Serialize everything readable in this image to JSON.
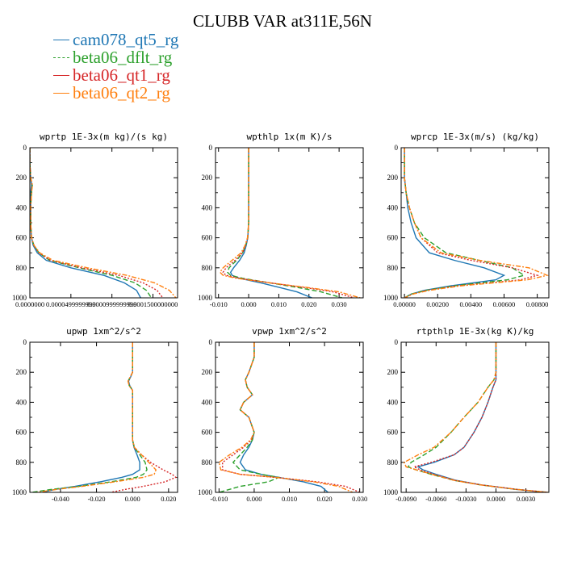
{
  "figure_title": "CLUBB VAR at311E,56N",
  "legend": [
    {
      "label": "cam078_qt5_rg",
      "color": "#1f77b4",
      "dash": "solid"
    },
    {
      "label": "beta06_dflt_rg",
      "color": "#2ca02c",
      "dash": "dash"
    },
    {
      "label": "beta06_qt1_rg",
      "color": "#d62728",
      "dash": "dot"
    },
    {
      "label": "beta06_qt2_rg",
      "color": "#ff7f0e",
      "dash": "dashdot"
    }
  ],
  "chart_data": [
    {
      "type": "line",
      "title": "wprtp  1E-3x(m kg)/(s kg)",
      "xlim": [
        0.0,
        0.00018
      ],
      "ylim": [
        0,
        1000
      ],
      "y_inverted": true,
      "yticks": [
        0,
        200,
        400,
        600,
        800,
        1000
      ],
      "xticks": [
        0.0,
        5e-05,
        0.0001,
        0.00015
      ],
      "xticklabels": [
        "0.0000000",
        "0.0000499999999",
        "0.0000999999999",
        "0.0001500000000"
      ],
      "y": [
        0,
        100,
        200,
        250,
        300,
        400,
        500,
        600,
        650,
        700,
        750,
        800,
        850,
        900,
        950,
        1000
      ],
      "series": [
        {
          "name": "cam078_qt5_rg",
          "x": [
            0.0,
            0.0,
            1e-06,
            2e-06,
            1e-06,
            1e-06,
            1e-06,
            2e-06,
            4e-06,
            9e-06,
            2e-05,
            5e-05,
            9e-05,
            0.000115,
            0.00013,
            0.000135
          ]
        },
        {
          "name": "beta06_dflt_rg",
          "x": [
            0.0,
            0.0,
            1e-06,
            3e-06,
            2e-06,
            1e-06,
            1e-06,
            2e-06,
            5e-06,
            1.1e-05,
            2.4e-05,
            6e-05,
            0.0001,
            0.000128,
            0.000142,
            0.000148
          ]
        },
        {
          "name": "beta06_qt1_rg",
          "x": [
            0.0,
            0.0,
            1e-06,
            3e-06,
            2e-06,
            1e-06,
            1e-06,
            2e-06,
            5e-06,
            1.1e-05,
            2.5e-05,
            6.3e-05,
            0.000108,
            0.000138,
            0.000155,
            0.000162
          ]
        },
        {
          "name": "beta06_qt2_rg",
          "x": [
            0.0,
            0.0,
            1e-06,
            3e-06,
            2e-06,
            1e-06,
            1e-06,
            2e-06,
            5e-06,
            1.2e-05,
            2.8e-05,
            7e-05,
            0.000118,
            0.000152,
            0.00017,
            0.000178
          ]
        }
      ]
    },
    {
      "type": "line",
      "title": "wpthlp  1x(m K)/s",
      "xlim": [
        -0.011,
        0.038
      ],
      "ylim": [
        0,
        1000
      ],
      "y_inverted": true,
      "yticks": [
        0,
        200,
        400,
        600,
        800,
        1000
      ],
      "xticks": [
        -0.01,
        0.0,
        0.01,
        0.02,
        0.03
      ],
      "xticklabels": [
        "-0.010",
        "0.000",
        "0.010",
        "0.020",
        "0.030"
      ],
      "y": [
        0,
        100,
        200,
        300,
        400,
        500,
        600,
        650,
        700,
        750,
        800,
        830,
        850,
        870,
        900,
        930,
        960,
        1000
      ],
      "series": [
        {
          "name": "cam078_qt5_rg",
          "x": [
            0.0,
            0.0,
            0.0,
            0.0,
            0.0,
            0.0,
            -0.0003,
            -0.0008,
            -0.0015,
            -0.003,
            -0.005,
            -0.006,
            -0.0055,
            -0.003,
            0.004,
            0.01,
            0.016,
            0.021
          ]
        },
        {
          "name": "beta06_dflt_rg",
          "x": [
            0.0,
            0.0,
            0.0,
            0.0,
            0.0,
            0.0,
            -0.0003,
            -0.001,
            -0.002,
            -0.004,
            -0.0065,
            -0.007,
            -0.006,
            -0.002,
            0.007,
            0.016,
            0.024,
            0.031
          ]
        },
        {
          "name": "beta06_qt1_rg",
          "x": [
            0.0,
            0.0,
            0.0,
            0.0,
            0.0,
            0.0,
            -0.0003,
            -0.001,
            -0.002,
            -0.0045,
            -0.0075,
            -0.0085,
            -0.0075,
            -0.003,
            0.007,
            0.018,
            0.028,
            0.035
          ]
        },
        {
          "name": "beta06_qt2_rg",
          "x": [
            0.0,
            0.0,
            0.0,
            0.0,
            0.0,
            0.0,
            -0.0004,
            -0.0012,
            -0.0025,
            -0.0055,
            -0.0085,
            -0.0095,
            -0.0085,
            -0.004,
            0.007,
            0.019,
            0.03,
            0.037
          ]
        }
      ]
    },
    {
      "type": "line",
      "title": "wprcp  1E-3x(m/s) (kg/kg)",
      "xlim": [
        -0.0002,
        0.0087
      ],
      "ylim": [
        0,
        1000
      ],
      "y_inverted": true,
      "yticks": [
        0,
        200,
        400,
        600,
        800,
        1000
      ],
      "xticks": [
        0.0,
        0.002,
        0.004,
        0.006,
        0.008
      ],
      "xticklabels": [
        "0.00000",
        "0.00200",
        "0.00400",
        "0.00600",
        "0.00800"
      ],
      "y": [
        0,
        100,
        200,
        300,
        400,
        500,
        600,
        700,
        750,
        800,
        850,
        880,
        920,
        950,
        975,
        1000
      ],
      "series": [
        {
          "name": "cam078_qt5_rg",
          "x": [
            0.0,
            0.0,
            0.0,
            0.0001,
            0.0002,
            0.0004,
            0.0007,
            0.0015,
            0.003,
            0.0048,
            0.006,
            0.0055,
            0.0028,
            0.0012,
            0.0004,
            0.0
          ]
        },
        {
          "name": "beta06_dflt_rg",
          "x": [
            0.0,
            0.0,
            0.0,
            0.0001,
            0.0003,
            0.0006,
            0.0012,
            0.0025,
            0.0045,
            0.0065,
            0.0072,
            0.0062,
            0.003,
            0.0013,
            0.0004,
            0.0
          ]
        },
        {
          "name": "beta06_qt1_rg",
          "x": [
            0.0,
            0.0,
            0.0,
            0.0001,
            0.0003,
            0.0006,
            0.001,
            0.002,
            0.004,
            0.0065,
            0.008,
            0.007,
            0.0032,
            0.0014,
            0.0005,
            0.0
          ]
        },
        {
          "name": "beta06_qt2_rg",
          "x": [
            0.0,
            0.0,
            0.0,
            0.0001,
            0.0003,
            0.0006,
            0.001,
            0.0022,
            0.0045,
            0.0075,
            0.0086,
            0.0074,
            0.0034,
            0.0015,
            0.0005,
            0.0
          ]
        }
      ]
    },
    {
      "type": "line",
      "title": "upwp  1xm^2/s^2",
      "xlim": [
        -0.057,
        0.025
      ],
      "ylim": [
        0,
        1000
      ],
      "y_inverted": true,
      "yticks": [
        0,
        200,
        400,
        600,
        800,
        1000
      ],
      "xticks": [
        -0.04,
        -0.02,
        0.0,
        0.02
      ],
      "xticklabels": [
        "-0.040",
        "-0.020",
        "0.000",
        "0.020"
      ],
      "y": [
        0,
        100,
        200,
        230,
        260,
        290,
        320,
        400,
        500,
        600,
        650,
        700,
        750,
        800,
        850,
        880,
        900,
        930,
        960,
        980,
        1000
      ],
      "series": [
        {
          "name": "cam078_qt5_rg",
          "x": [
            0.0,
            0.0,
            0.0,
            -0.001,
            -0.0022,
            -0.0015,
            0.0,
            0.0,
            0.0,
            0.0,
            0.0,
            0.0008,
            0.0025,
            0.004,
            0.004,
            0.0,
            -0.006,
            -0.018,
            -0.032,
            -0.043,
            -0.05
          ]
        },
        {
          "name": "beta06_dflt_rg",
          "x": [
            0.0,
            0.0,
            0.0,
            -0.0012,
            -0.0025,
            -0.0018,
            0.0,
            0.0,
            0.0,
            0.0,
            0.0,
            0.001,
            0.004,
            0.007,
            0.008,
            0.006,
            0.002,
            -0.012,
            -0.03,
            -0.045,
            -0.056
          ]
        },
        {
          "name": "beta06_qt1_rg",
          "x": [
            0.0,
            0.0,
            0.0,
            -0.0012,
            -0.0025,
            -0.0018,
            0.0,
            0.0,
            0.0,
            0.0,
            0.0,
            0.001,
            0.005,
            0.01,
            0.017,
            0.022,
            0.024,
            0.018,
            0.006,
            -0.004,
            -0.012
          ]
        },
        {
          "name": "beta06_qt2_rg",
          "x": [
            0.0,
            0.0,
            0.0,
            -0.0012,
            -0.0025,
            -0.0018,
            0.0,
            0.0,
            0.0,
            0.0,
            0.0,
            0.001,
            0.005,
            0.009,
            0.013,
            0.012,
            0.006,
            -0.01,
            -0.028,
            -0.042,
            -0.053
          ]
        }
      ]
    },
    {
      "type": "line",
      "title": "vpwp  1xm^2/s^2",
      "xlim": [
        -0.011,
        0.031
      ],
      "ylim": [
        0,
        1000
      ],
      "y_inverted": true,
      "yticks": [
        0,
        200,
        400,
        600,
        800,
        1000
      ],
      "xticks": [
        -0.01,
        0.0,
        0.01,
        0.02,
        0.03
      ],
      "xticklabels": [
        "-0.010",
        "0.000",
        "0.010",
        "0.020",
        "0.030"
      ],
      "y": [
        0,
        100,
        200,
        250,
        300,
        350,
        400,
        450,
        500,
        600,
        650,
        700,
        750,
        800,
        850,
        880,
        900,
        930,
        960,
        1000
      ],
      "series": [
        {
          "name": "cam078_qt5_rg",
          "x": [
            0.0,
            0.0,
            -0.0015,
            -0.0025,
            -0.002,
            -0.0005,
            -0.003,
            -0.004,
            -0.0015,
            0.0,
            -0.0005,
            -0.0015,
            -0.003,
            -0.004,
            -0.0025,
            0.002,
            0.007,
            0.014,
            0.019,
            0.021
          ]
        },
        {
          "name": "beta06_dflt_rg",
          "x": [
            0.0,
            0.0,
            -0.0015,
            -0.0025,
            -0.002,
            -0.0005,
            -0.003,
            -0.004,
            -0.0015,
            0.0,
            -0.0005,
            -0.002,
            -0.004,
            -0.006,
            -0.004,
            0.002,
            0.007,
            0.004,
            -0.004,
            -0.01
          ]
        },
        {
          "name": "beta06_qt1_rg",
          "x": [
            0.0,
            0.0,
            -0.0015,
            -0.0025,
            -0.002,
            -0.0005,
            -0.003,
            -0.004,
            -0.0015,
            0.0,
            -0.0008,
            -0.003,
            -0.006,
            -0.009,
            -0.009,
            -0.004,
            0.006,
            0.018,
            0.026,
            0.03
          ]
        },
        {
          "name": "beta06_qt2_rg",
          "x": [
            0.0,
            0.0,
            -0.0015,
            -0.0025,
            -0.002,
            -0.0005,
            -0.003,
            -0.004,
            -0.0015,
            0.0,
            -0.001,
            -0.0035,
            -0.007,
            -0.01,
            -0.0095,
            -0.004,
            0.006,
            0.017,
            0.024,
            0.028
          ]
        }
      ]
    },
    {
      "type": "line",
      "title": "rtpthlp  1E-3x(kg K)/kg",
      "xlim": [
        -0.0095,
        0.0053
      ],
      "ylim": [
        0,
        1000
      ],
      "y_inverted": true,
      "yticks": [
        0,
        200,
        400,
        600,
        800,
        1000
      ],
      "xticks": [
        -0.009,
        -0.006,
        -0.003,
        0.0,
        0.003
      ],
      "xticklabels": [
        "-0.0090",
        "-0.0060",
        "-0.0030",
        "0.0000",
        "0.0030"
      ],
      "y": [
        0,
        100,
        200,
        250,
        300,
        400,
        500,
        600,
        700,
        750,
        800,
        830,
        850,
        880,
        920,
        950,
        980,
        1000
      ],
      "series": [
        {
          "name": "cam078_qt5_rg",
          "x": [
            0.0,
            0.0,
            0.0,
            0.0,
            -0.0003,
            -0.0008,
            -0.0014,
            -0.0022,
            -0.0032,
            -0.0042,
            -0.0062,
            -0.0078,
            -0.0073,
            -0.006,
            -0.004,
            -0.0015,
            0.002,
            0.005
          ]
        },
        {
          "name": "beta06_dflt_rg",
          "x": [
            0.0,
            0.0,
            0.0,
            -0.0002,
            -0.0008,
            -0.0018,
            -0.0032,
            -0.0045,
            -0.006,
            -0.0072,
            -0.0085,
            -0.0088,
            -0.008,
            -0.0065,
            -0.0042,
            -0.0016,
            0.002,
            0.0052
          ]
        },
        {
          "name": "beta06_qt1_rg",
          "x": [
            0.0,
            0.0,
            0.0,
            0.0,
            -0.0003,
            -0.0008,
            -0.0014,
            -0.0022,
            -0.0032,
            -0.0042,
            -0.0065,
            -0.0082,
            -0.0076,
            -0.0062,
            -0.0041,
            -0.0015,
            0.0021,
            0.0052
          ]
        },
        {
          "name": "beta06_qt2_rg",
          "x": [
            0.0,
            0.0,
            0.0,
            -0.0002,
            -0.0008,
            -0.0018,
            -0.0032,
            -0.0045,
            -0.0062,
            -0.0078,
            -0.0092,
            -0.009,
            -0.008,
            -0.0064,
            -0.0042,
            -0.0016,
            0.002,
            0.0052
          ]
        }
      ]
    }
  ]
}
